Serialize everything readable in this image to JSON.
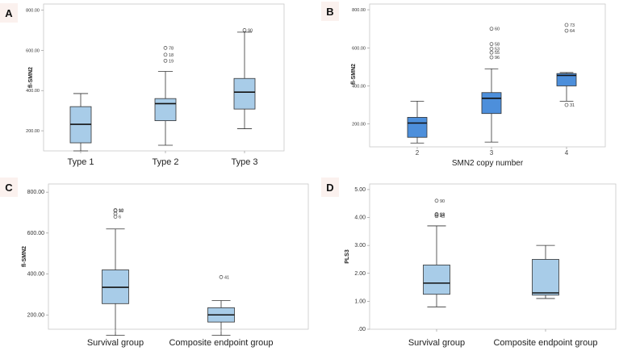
{
  "chart_data": [
    {
      "panel": "A",
      "type": "box",
      "ylabel": "fl-SMN2",
      "xlabel": "",
      "yticks": [
        "200.00",
        "400.00",
        "600.00",
        "800.00"
      ],
      "ylim": [
        100,
        830
      ],
      "categories": [
        "Type 1",
        "Type 2",
        "Type 3"
      ],
      "boxes": [
        {
          "min": 100,
          "q1": 140,
          "median": 232,
          "q3": 320,
          "max": 385,
          "outliers": []
        },
        {
          "min": 128,
          "q1": 250,
          "median": 335,
          "q3": 360,
          "max": 495,
          "outliers": [
            {
              "value": 548,
              "label": "19"
            },
            {
              "value": 578,
              "label": "18"
            },
            {
              "value": 612,
              "label": "78"
            }
          ]
        },
        {
          "min": 210,
          "q1": 308,
          "median": 392,
          "q3": 460,
          "max": 690,
          "outliers": [
            {
              "value": 700,
              "label": "90"
            }
          ]
        }
      ],
      "color": "#a8cce8"
    },
    {
      "panel": "B",
      "type": "box",
      "ylabel": "fl-SMN2",
      "xlabel": "SMN2 copy number",
      "yticks": [
        "200.00",
        "400.00",
        "600.00",
        "800.00"
      ],
      "ylim": [
        80,
        830
      ],
      "categories": [
        "2",
        "3",
        "4"
      ],
      "boxes": [
        {
          "min": 100,
          "q1": 130,
          "median": 205,
          "q3": 235,
          "max": 320,
          "outliers": []
        },
        {
          "min": 105,
          "q1": 255,
          "median": 335,
          "q3": 365,
          "max": 490,
          "outliers": [
            {
              "value": 550,
              "label": "96"
            },
            {
              "value": 575,
              "label": "55"
            },
            {
              "value": 595,
              "label": "53"
            },
            {
              "value": 620,
              "label": "58"
            },
            {
              "value": 700,
              "label": "60"
            }
          ]
        },
        {
          "min": 320,
          "q1": 400,
          "median": 455,
          "q3": 465,
          "max": 470,
          "outliers": [
            {
              "value": 300,
              "label": "31"
            },
            {
              "value": 690,
              "label": "64"
            },
            {
              "value": 720,
              "label": "73"
            }
          ]
        }
      ],
      "color": "#4d8fdb"
    },
    {
      "panel": "C",
      "type": "box",
      "ylabel": "fl-SMN2",
      "xlabel": "",
      "yticks": [
        "200.00",
        "400.00",
        "600.00",
        "800.00"
      ],
      "ylim": [
        130,
        840
      ],
      "categories": [
        "Survival group",
        "Composite endpoint group"
      ],
      "boxes": [
        {
          "min": 100,
          "q1": 255,
          "median": 335,
          "q3": 420,
          "max": 620,
          "outliers": [
            {
              "value": 680,
              "label": "6"
            },
            {
              "value": 695,
              "label": ""
            },
            {
              "value": 710,
              "label": "90"
            },
            {
              "value": 712,
              "label": "12"
            }
          ]
        },
        {
          "min": 100,
          "q1": 165,
          "median": 200,
          "q3": 235,
          "max": 270,
          "outliers": [
            {
              "value": 385,
              "label": "41"
            }
          ]
        }
      ],
      "color": "#a8cce8"
    },
    {
      "panel": "D",
      "type": "box",
      "ylabel": "PLS3",
      "xlabel": "",
      "yticks": [
        ".00",
        "1.00",
        "2.00",
        "3.00",
        "4.00",
        "5.00"
      ],
      "ylim": [
        0,
        5.2
      ],
      "categories": [
        "Survival group",
        "Composite endpoint group"
      ],
      "boxes": [
        {
          "min": 0.8,
          "q1": 1.25,
          "median": 1.65,
          "q3": 2.3,
          "max": 3.7,
          "outliers": [
            {
              "value": 4.05,
              "label": "43"
            },
            {
              "value": 4.1,
              "label": "53"
            },
            {
              "value": 4.12,
              "label": "93"
            },
            {
              "value": 4.6,
              "label": "90"
            }
          ]
        },
        {
          "min": 1.1,
          "q1": 1.22,
          "median": 1.3,
          "q3": 2.5,
          "max": 3.0,
          "outliers": []
        }
      ],
      "color": "#a8cce8"
    }
  ],
  "panel_labels": [
    "A",
    "B",
    "C",
    "D"
  ]
}
